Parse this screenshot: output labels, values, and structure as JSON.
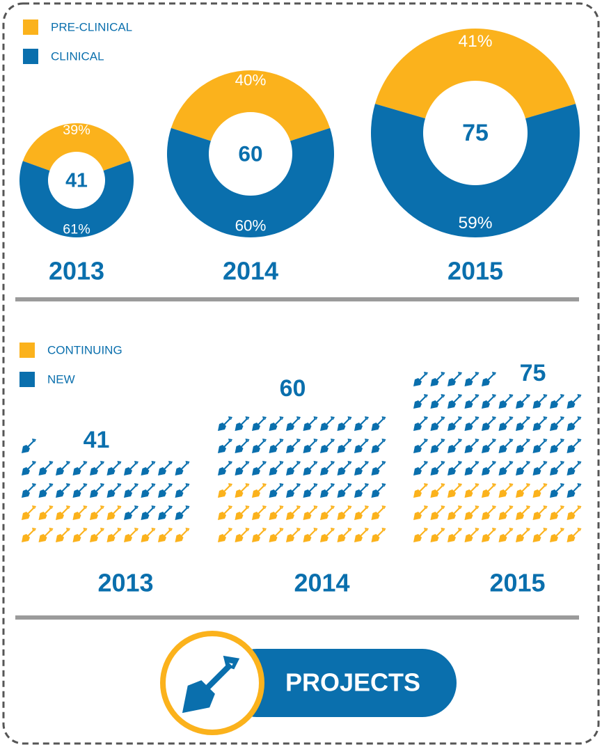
{
  "chart_data": [
    {
      "type": "donut",
      "categories": [
        "2013",
        "2014",
        "2015"
      ],
      "totals": [
        41,
        60,
        75
      ],
      "series": [
        {
          "name": "PRE-CLINICAL",
          "color": "#fbb21c",
          "values": [
            39,
            40,
            41
          ],
          "value_labels": [
            "39%",
            "40%",
            "41%"
          ]
        },
        {
          "name": "CLINICAL",
          "color": "#0a6fad",
          "values": [
            61,
            60,
            59
          ],
          "value_labels": [
            "61%",
            "60%",
            "59%"
          ]
        }
      ]
    },
    {
      "type": "pictograph",
      "categories": [
        "2013",
        "2014",
        "2015"
      ],
      "totals": [
        41,
        60,
        75
      ],
      "series": [
        {
          "name": "CONTINUING",
          "color": "#fbb21c",
          "values": [
            16,
            23,
            28
          ]
        },
        {
          "name": "NEW",
          "color": "#0a6fad",
          "values": [
            25,
            37,
            47
          ]
        }
      ]
    }
  ],
  "button": {
    "label": "PROJECTS"
  }
}
